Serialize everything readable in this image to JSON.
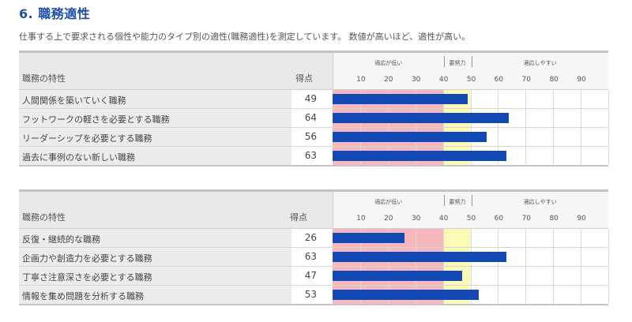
{
  "section_title": "6. 職務適性",
  "description": "仕事する上で要求される個性や能力のタイプ別の適性(職務適性)を測定しています。 数値が高いほど、適性が高い。",
  "colors": {
    "title": "#1f4fa6",
    "bar": "#1248b4",
    "zone_low": "#f7b7bc",
    "zone_effort": "#fafab4"
  },
  "scale": {
    "min": 0,
    "max": 100,
    "ticks": [
      "10",
      "20",
      "30",
      "40",
      "50",
      "60",
      "70",
      "80",
      "90"
    ],
    "zones": [
      {
        "label": "適応が低い",
        "from": 0,
        "to": 40
      },
      {
        "label": "要努力",
        "from": 40,
        "to": 50
      },
      {
        "label": "適応しやすい",
        "from": 50,
        "to": 100
      }
    ]
  },
  "tables": [
    {
      "header_label": "職務の特性",
      "header_score": "得点",
      "rows": [
        {
          "label": "人間関係を築いていく職務",
          "score": "49",
          "value": 49
        },
        {
          "label": "フットワークの軽さを必要とする職務",
          "score": "64",
          "value": 64
        },
        {
          "label": "リーダーシップを必要とする職務",
          "score": "56",
          "value": 56
        },
        {
          "label": "過去に事例のない新しい職務",
          "score": "63",
          "value": 63
        }
      ]
    },
    {
      "header_label": "職務の特性",
      "header_score": "得点",
      "rows": [
        {
          "label": "反復・継続的な職務",
          "score": "26",
          "value": 26
        },
        {
          "label": "企画力や創造力を必要とする職務",
          "score": "63",
          "value": 63
        },
        {
          "label": "丁寧さ注意深さを必要とする職務",
          "score": "47",
          "value": 47
        },
        {
          "label": "情報を集め問題を分析する職務",
          "score": "53",
          "value": 53
        }
      ]
    }
  ]
}
